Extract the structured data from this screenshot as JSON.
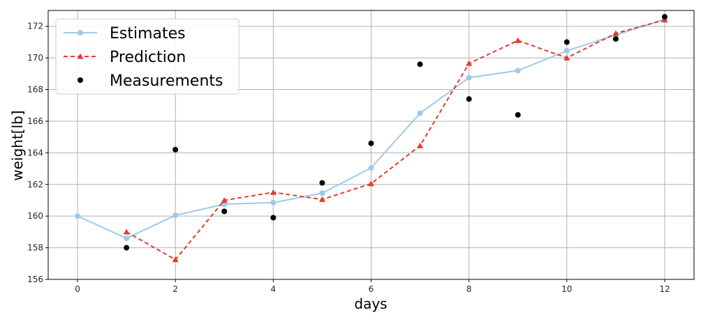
{
  "chart_data": {
    "type": "line",
    "xlabel": "days",
    "ylabel": "weight[lb]",
    "xlim": [
      -0.6,
      12.6
    ],
    "ylim": [
      156,
      173
    ],
    "xticks": [
      "0",
      "2",
      "4",
      "6",
      "8",
      "10",
      "12"
    ],
    "yticks": [
      "156",
      "158",
      "160",
      "162",
      "164",
      "166",
      "168",
      "170",
      "172"
    ],
    "grid": true,
    "legend_position": "top-left",
    "series": [
      {
        "name": "Estimates",
        "style": "line-circle",
        "color": "#9ecae9",
        "x": [
          0,
          1,
          2,
          3,
          4,
          5,
          6,
          7,
          8,
          9,
          10,
          11,
          12
        ],
        "y": [
          160.0,
          158.6,
          160.05,
          160.75,
          160.85,
          161.45,
          163.05,
          166.5,
          168.75,
          169.2,
          170.45,
          171.45,
          172.45
        ]
      },
      {
        "name": "Prediction",
        "style": "dashed-triangle",
        "color": "#e03c31",
        "x": [
          1,
          2,
          3,
          4,
          5,
          6,
          7,
          8,
          9,
          10,
          11,
          12
        ],
        "y": [
          159.0,
          157.25,
          161.0,
          161.5,
          161.05,
          162.05,
          164.45,
          169.65,
          171.1,
          170.0,
          171.55,
          172.4
        ]
      },
      {
        "name": "Measurements",
        "style": "scatter",
        "color": "#000000",
        "x": [
          1,
          2,
          3,
          4,
          5,
          6,
          7,
          8,
          9,
          10,
          11,
          12
        ],
        "y": [
          158.0,
          164.2,
          160.3,
          159.9,
          162.1,
          164.6,
          169.6,
          167.4,
          166.4,
          171.0,
          171.2,
          172.6
        ]
      }
    ]
  }
}
